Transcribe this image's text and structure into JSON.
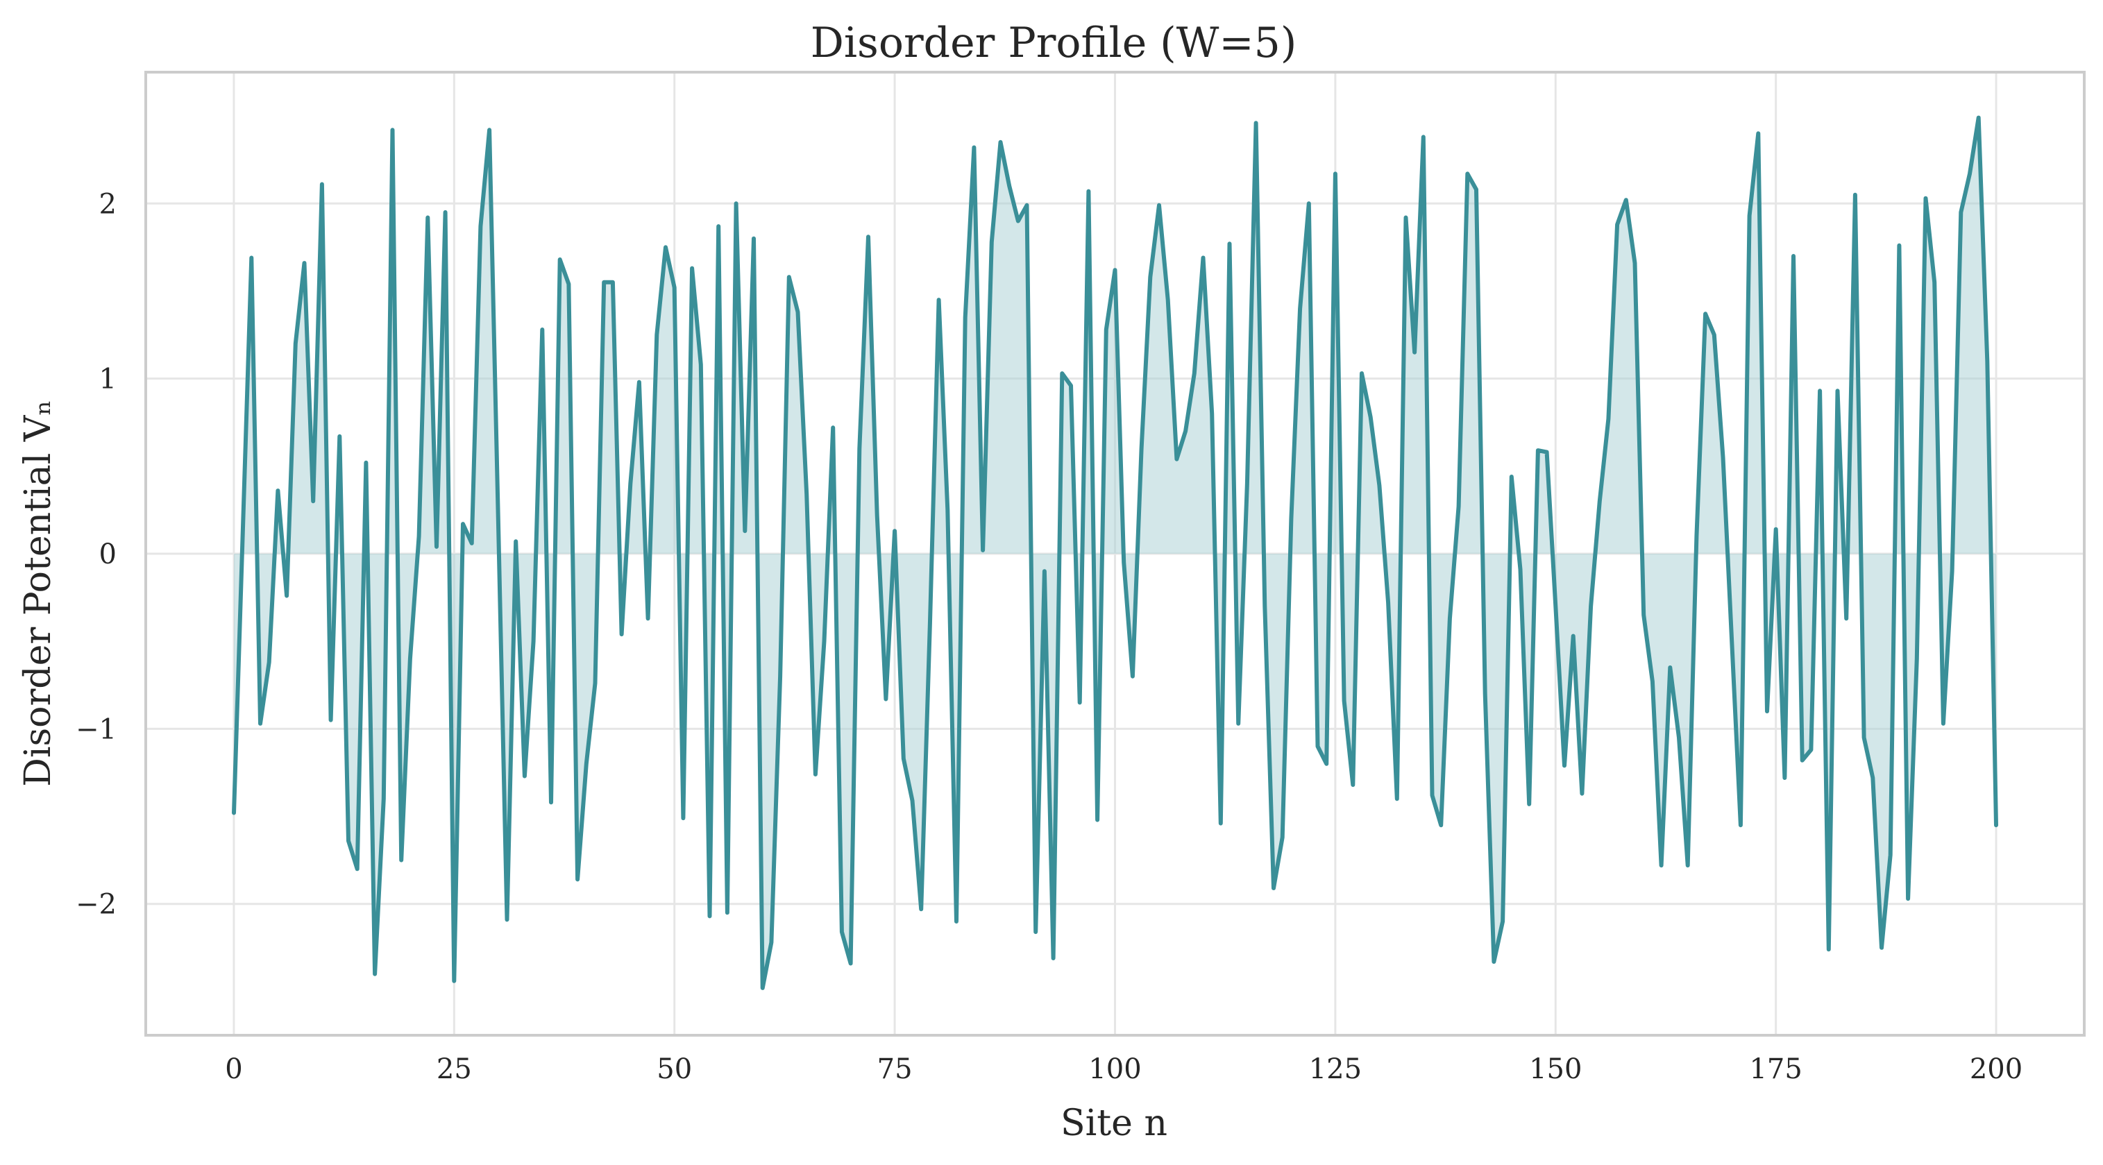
{
  "chart_data": {
    "type": "line",
    "title": "Disorder Profile (W=5)",
    "xlabel": "Site n",
    "ylabel": "Disorder Potential Vₙ",
    "xlim": [
      -10,
      210
    ],
    "ylim": [
      -2.75,
      2.75
    ],
    "x_ticks": [
      0,
      25,
      50,
      75,
      100,
      125,
      150,
      175,
      200
    ],
    "y_ticks": [
      -2,
      -1,
      0,
      1,
      2
    ],
    "grid": true,
    "legend": "none",
    "fill_to_zero": true,
    "colors": {
      "line": "#3a8f98",
      "fill": "#a7cfd3",
      "axes_frame": "#cccccc",
      "grid": "#e6e6e6",
      "text": "#262626"
    },
    "series": [
      {
        "x_start": 0,
        "x_step": 1,
        "values": [
          -1.48,
          0.1,
          1.69,
          -0.97,
          -0.62,
          0.36,
          -0.24,
          1.2,
          1.66,
          0.3,
          2.11,
          -0.95,
          0.67,
          -1.64,
          -1.8,
          0.52,
          -2.4,
          -1.4,
          2.42,
          -1.75,
          -0.6,
          0.1,
          1.92,
          0.04,
          1.95,
          -2.44,
          0.17,
          0.06,
          1.87,
          2.42,
          0.2,
          -2.09,
          0.07,
          -1.27,
          -0.5,
          1.28,
          -1.42,
          1.68,
          1.54,
          -1.86,
          -1.2,
          -0.74,
          1.55,
          1.55,
          -0.46,
          0.4,
          0.98,
          -0.37,
          1.25,
          1.75,
          1.52,
          -1.51,
          1.63,
          1.08,
          -2.07,
          1.87,
          -2.05,
          2.0,
          0.13,
          1.8,
          -2.48,
          -2.22,
          -0.7,
          1.58,
          1.38,
          0.34,
          -1.26,
          -0.5,
          0.72,
          -2.16,
          -2.34,
          0.6,
          1.81,
          0.22,
          -0.83,
          0.13,
          -1.17,
          -1.41,
          -2.03,
          -0.4,
          1.45,
          0.25,
          -2.1,
          1.35,
          2.32,
          0.02,
          1.78,
          2.35,
          2.1,
          1.9,
          1.99,
          -2.16,
          -0.1,
          -2.31,
          1.03,
          0.96,
          -0.85,
          2.07,
          -1.52,
          1.28,
          1.62,
          -0.05,
          -0.7,
          0.6,
          1.58,
          1.99,
          1.45,
          0.54,
          0.7,
          1.03,
          1.69,
          0.8,
          -1.54,
          1.77,
          -0.97,
          0.4,
          2.46,
          -0.3,
          -1.91,
          -1.62,
          0.2,
          1.4,
          2.0,
          -1.1,
          -1.2,
          2.17,
          -0.84,
          -1.32,
          1.03,
          0.78,
          0.39,
          -0.28,
          -1.4,
          1.92,
          1.15,
          2.38,
          -1.38,
          -1.55,
          -0.37,
          0.27,
          2.17,
          2.08,
          -0.8,
          -2.33,
          -2.1,
          0.44,
          -0.09,
          -1.43,
          0.59,
          0.58,
          -0.3,
          -1.21,
          -0.47,
          -1.37,
          -0.3,
          0.3,
          0.77,
          1.88,
          2.02,
          1.66,
          -0.35,
          -0.73,
          -1.78,
          -0.65,
          -1.05,
          -1.78,
          0.1,
          1.37,
          1.25,
          0.55,
          -0.5,
          -1.55,
          1.93,
          2.4,
          -0.9,
          0.14,
          -1.28,
          1.7,
          -1.18,
          -1.12,
          0.93,
          -2.26,
          0.93,
          -0.37,
          2.05,
          -1.05,
          -1.28,
          -2.25,
          -1.72,
          1.76,
          -1.97,
          -0.6,
          2.03,
          1.55,
          -0.97,
          -0.1,
          1.95,
          2.17,
          2.49,
          1.1,
          -1.55
        ]
      }
    ]
  }
}
